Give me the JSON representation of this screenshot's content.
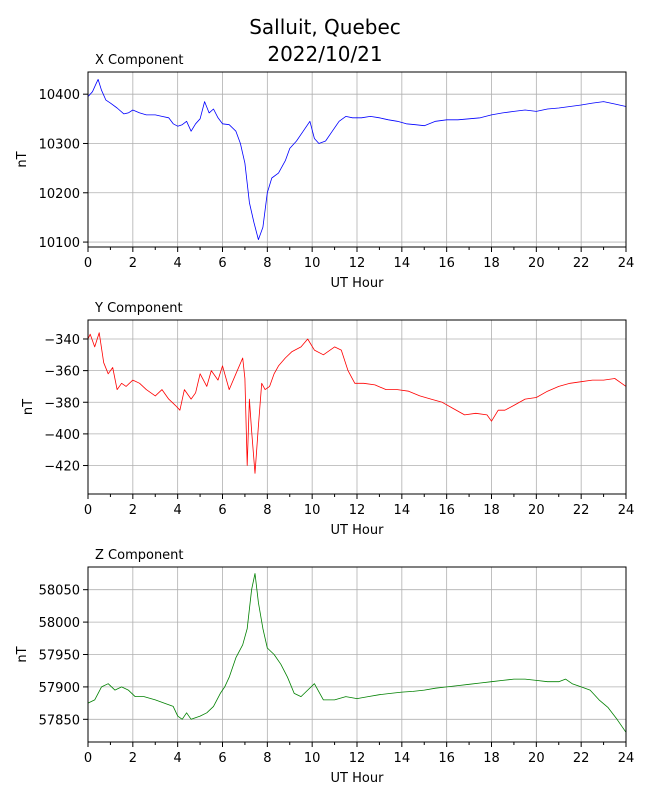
{
  "title_line1": "Salluit, Quebec",
  "title_line2": "2022/10/21",
  "chart_data": [
    {
      "type": "line",
      "title": "X Component",
      "xlabel": "UT Hour",
      "ylabel": "nT",
      "color": "#0000ff",
      "xlim": [
        0,
        24
      ],
      "ylim": [
        10090,
        10445
      ],
      "xticks": [
        0,
        2,
        4,
        6,
        8,
        10,
        12,
        14,
        16,
        18,
        20,
        22,
        24
      ],
      "yticks": [
        10100,
        10200,
        10300,
        10400
      ],
      "grid": true,
      "x": [
        0,
        0.2,
        0.35,
        0.45,
        0.6,
        0.8,
        1.0,
        1.3,
        1.6,
        1.8,
        2.0,
        2.3,
        2.6,
        3.0,
        3.3,
        3.6,
        3.8,
        4.0,
        4.2,
        4.4,
        4.6,
        4.8,
        5.0,
        5.2,
        5.4,
        5.6,
        5.8,
        6.0,
        6.3,
        6.6,
        6.8,
        7.0,
        7.2,
        7.4,
        7.6,
        7.8,
        8.0,
        8.2,
        8.5,
        8.8,
        9.0,
        9.3,
        9.6,
        9.9,
        10.1,
        10.3,
        10.6,
        10.9,
        11.2,
        11.5,
        11.8,
        12.2,
        12.6,
        13.0,
        13.4,
        13.8,
        14.2,
        14.6,
        15.0,
        15.5,
        16.0,
        16.5,
        17.0,
        17.5,
        18.0,
        18.5,
        19.0,
        19.5,
        20.0,
        20.5,
        21.0,
        21.5,
        22.0,
        22.5,
        23.0,
        23.5,
        24.0
      ],
      "values": [
        10395,
        10405,
        10420,
        10430,
        10408,
        10388,
        10382,
        10372,
        10360,
        10362,
        10368,
        10362,
        10358,
        10358,
        10355,
        10352,
        10340,
        10335,
        10338,
        10345,
        10325,
        10340,
        10350,
        10385,
        10362,
        10370,
        10352,
        10340,
        10338,
        10325,
        10300,
        10260,
        10180,
        10140,
        10105,
        10130,
        10200,
        10230,
        10240,
        10265,
        10290,
        10305,
        10325,
        10345,
        10310,
        10300,
        10305,
        10325,
        10345,
        10355,
        10352,
        10352,
        10355,
        10352,
        10348,
        10345,
        10340,
        10338,
        10336,
        10345,
        10348,
        10348,
        10350,
        10352,
        10358,
        10362,
        10365,
        10368,
        10365,
        10370,
        10372,
        10375,
        10378,
        10382,
        10385,
        10380,
        10375
      ]
    },
    {
      "type": "line",
      "title": "Y Component",
      "xlabel": "UT Hour",
      "ylabel": "nT",
      "color": "#ff0000",
      "xlim": [
        0,
        24
      ],
      "ylim": [
        -438,
        -328
      ],
      "xticks": [
        0,
        2,
        4,
        6,
        8,
        10,
        12,
        14,
        16,
        18,
        20,
        22,
        24
      ],
      "yticks": [
        -420,
        -400,
        -380,
        -360,
        -340
      ],
      "grid": true,
      "x": [
        0,
        0.1,
        0.3,
        0.5,
        0.7,
        0.9,
        1.1,
        1.3,
        1.5,
        1.7,
        2.0,
        2.3,
        2.6,
        3.0,
        3.3,
        3.6,
        3.9,
        4.1,
        4.3,
        4.6,
        4.8,
        5.0,
        5.3,
        5.5,
        5.8,
        6.0,
        6.3,
        6.6,
        6.9,
        7.0,
        7.1,
        7.2,
        7.3,
        7.45,
        7.6,
        7.75,
        7.9,
        8.1,
        8.3,
        8.5,
        8.8,
        9.1,
        9.5,
        9.8,
        10.1,
        10.5,
        11.0,
        11.3,
        11.6,
        11.9,
        12.3,
        12.8,
        13.3,
        13.8,
        14.3,
        14.8,
        15.3,
        15.8,
        16.3,
        16.8,
        17.3,
        17.8,
        18.0,
        18.3,
        18.6,
        19.0,
        19.5,
        20.0,
        20.5,
        21.0,
        21.5,
        22.0,
        22.5,
        23.0,
        23.5,
        24.0
      ],
      "values": [
        -340,
        -337,
        -345,
        -336,
        -355,
        -362,
        -358,
        -372,
        -368,
        -370,
        -366,
        -368,
        -372,
        -376,
        -372,
        -378,
        -382,
        -385,
        -372,
        -378,
        -374,
        -362,
        -370,
        -360,
        -366,
        -357,
        -372,
        -362,
        -352,
        -365,
        -420,
        -378,
        -398,
        -425,
        -395,
        -368,
        -372,
        -370,
        -362,
        -357,
        -352,
        -348,
        -345,
        -340,
        -347,
        -350,
        -345,
        -347,
        -360,
        -368,
        -368,
        -369,
        -372,
        -372,
        -373,
        -376,
        -378,
        -380,
        -384,
        -388,
        -387,
        -388,
        -392,
        -385,
        -385,
        -382,
        -378,
        -377,
        -373,
        -370,
        -368,
        -367,
        -366,
        -366,
        -365,
        -370
      ]
    },
    {
      "type": "line",
      "title": "Z Component",
      "xlabel": "UT Hour",
      "ylabel": "nT",
      "color": "#008000",
      "xlim": [
        0,
        24
      ],
      "ylim": [
        57815,
        58085
      ],
      "xticks": [
        0,
        2,
        4,
        6,
        8,
        10,
        12,
        14,
        16,
        18,
        20,
        22,
        24
      ],
      "yticks": [
        57850,
        57900,
        57950,
        58000,
        58050
      ],
      "grid": true,
      "x": [
        0,
        0.3,
        0.6,
        0.9,
        1.2,
        1.5,
        1.8,
        2.1,
        2.5,
        3.0,
        3.4,
        3.8,
        4.0,
        4.2,
        4.4,
        4.6,
        5.0,
        5.3,
        5.6,
        5.9,
        6.1,
        6.3,
        6.6,
        6.9,
        7.1,
        7.3,
        7.45,
        7.6,
        7.8,
        8.0,
        8.3,
        8.6,
        8.9,
        9.2,
        9.5,
        9.8,
        10.1,
        10.5,
        11.0,
        11.5,
        12.0,
        12.5,
        13.0,
        13.5,
        14.0,
        14.5,
        15.0,
        15.5,
        16.0,
        16.5,
        17.0,
        17.5,
        18.0,
        18.5,
        19.0,
        19.5,
        20.0,
        20.5,
        21.0,
        21.3,
        21.6,
        22.0,
        22.4,
        22.8,
        23.2,
        23.6,
        24.0
      ],
      "values": [
        57875,
        57880,
        57900,
        57905,
        57895,
        57900,
        57895,
        57885,
        57885,
        57880,
        57875,
        57870,
        57855,
        57850,
        57860,
        57850,
        57855,
        57860,
        57870,
        57890,
        57900,
        57915,
        57945,
        57965,
        57990,
        58050,
        58075,
        58030,
        57990,
        57960,
        57950,
        57935,
        57915,
        57890,
        57885,
        57895,
        57905,
        57880,
        57880,
        57885,
        57882,
        57885,
        57888,
        57890,
        57892,
        57893,
        57895,
        57898,
        57900,
        57902,
        57904,
        57906,
        57908,
        57910,
        57912,
        57912,
        57910,
        57908,
        57908,
        57912,
        57905,
        57900,
        57895,
        57880,
        57868,
        57850,
        57830
      ]
    }
  ]
}
